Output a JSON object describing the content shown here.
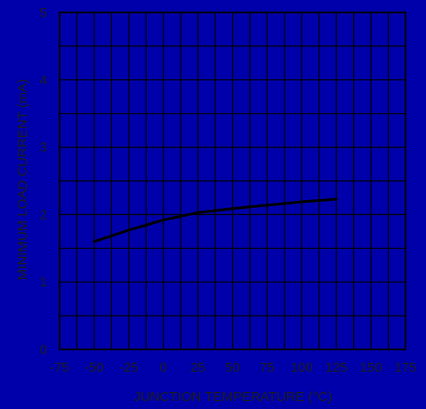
{
  "chart_data": {
    "type": "line",
    "title": "",
    "xlabel": "JUNCTION TEMPERATURE (°C)",
    "ylabel": "MINIMUM LOAD CURRENT (mA)",
    "xlim": [
      -75,
      175
    ],
    "ylim": [
      0,
      5
    ],
    "x_ticks": [
      "-75",
      "-50",
      "-25",
      "0",
      "25",
      "50",
      "75",
      "100",
      "125",
      "150",
      "175"
    ],
    "y_ticks": [
      "0",
      "1",
      "2",
      "3",
      "4",
      "5"
    ],
    "grid": true,
    "colors": {
      "background": "#0000aa",
      "grid": "#000000",
      "line": "#000000",
      "text": "#1c1c1c"
    },
    "series": [
      {
        "x": [
          -50,
          -25,
          0,
          25,
          50,
          75,
          100,
          125
        ],
        "y": [
          1.6,
          1.77,
          1.92,
          2.03,
          2.09,
          2.14,
          2.19,
          2.23
        ]
      }
    ]
  }
}
